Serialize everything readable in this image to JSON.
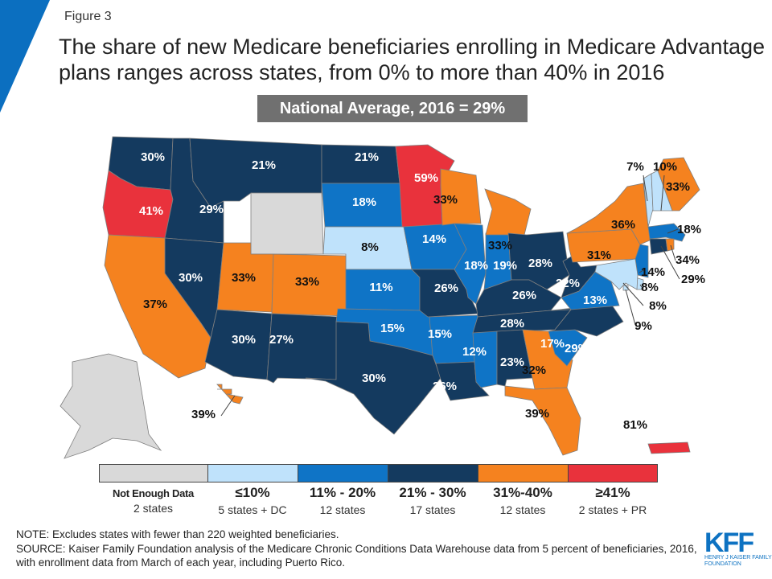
{
  "header": {
    "figure_label": "Figure 3",
    "title": "The share of new Medicare beneficiaries enrolling in Medicare Advantage plans ranges across states, from 0% to more than 40% in 2016",
    "national_average": "National Average, 2016 = 29%"
  },
  "colors": {
    "accent": "#0b6fc0",
    "nodata": "#d9d9d9",
    "le10": "#bfe2fb",
    "b11_20": "#0f74c6",
    "b21_30": "#143a5f",
    "b31_40": "#f5821f",
    "ge41": "#e9323c"
  },
  "legend": [
    {
      "bin": "nodata",
      "label": "Not Enough Data",
      "count": "2 states"
    },
    {
      "bin": "le10",
      "label": "≤10%",
      "count": "5 states + DC"
    },
    {
      "bin": "b11_20",
      "label": "11% - 20%",
      "count": "12 states"
    },
    {
      "bin": "b21_30",
      "label": "21% - 30%",
      "count": "17 states"
    },
    {
      "bin": "b31_40",
      "label": "31%-40%",
      "count": "12 states"
    },
    {
      "bin": "ge41",
      "label": "≥41%",
      "count": "2 states + PR"
    }
  ],
  "states": [
    {
      "code": "WA",
      "value": "30%",
      "bin": "b21_30"
    },
    {
      "code": "OR",
      "value": "41%",
      "bin": "ge41"
    },
    {
      "code": "ID",
      "value": "29%",
      "bin": "b21_30"
    },
    {
      "code": "MT",
      "value": "21%",
      "bin": "b21_30"
    },
    {
      "code": "WY",
      "value": "",
      "bin": "nodata"
    },
    {
      "code": "ND",
      "value": "21%",
      "bin": "b21_30"
    },
    {
      "code": "SD",
      "value": "18%",
      "bin": "b11_20"
    },
    {
      "code": "NE",
      "value": "8%",
      "bin": "le10"
    },
    {
      "code": "NV",
      "value": "30%",
      "bin": "b21_30"
    },
    {
      "code": "CA",
      "value": "37%",
      "bin": "b31_40"
    },
    {
      "code": "UT",
      "value": "33%",
      "bin": "b31_40"
    },
    {
      "code": "CO",
      "value": "33%",
      "bin": "b31_40"
    },
    {
      "code": "AZ",
      "value": "30%",
      "bin": "b21_30"
    },
    {
      "code": "NM",
      "value": "27%",
      "bin": "b21_30"
    },
    {
      "code": "KS",
      "value": "11%",
      "bin": "b11_20"
    },
    {
      "code": "OK",
      "value": "15%",
      "bin": "b11_20"
    },
    {
      "code": "TX",
      "value": "30%",
      "bin": "b21_30"
    },
    {
      "code": "MN",
      "value": "59%",
      "bin": "ge41"
    },
    {
      "code": "IA",
      "value": "14%",
      "bin": "b11_20"
    },
    {
      "code": "MO",
      "value": "26%",
      "bin": "b21_30"
    },
    {
      "code": "AR",
      "value": "15%",
      "bin": "b11_20"
    },
    {
      "code": "LA",
      "value": "26%",
      "bin": "b21_30"
    },
    {
      "code": "WI",
      "value": "33%",
      "bin": "b31_40"
    },
    {
      "code": "IL",
      "value": "18%",
      "bin": "b11_20"
    },
    {
      "code": "IN",
      "value": "19%",
      "bin": "b11_20"
    },
    {
      "code": "MI",
      "value": "33%",
      "bin": "b31_40"
    },
    {
      "code": "OH",
      "value": "28%",
      "bin": "b21_30"
    },
    {
      "code": "KY",
      "value": "26%",
      "bin": "b21_30"
    },
    {
      "code": "TN",
      "value": "28%",
      "bin": "b21_30"
    },
    {
      "code": "MS",
      "value": "12%",
      "bin": "b11_20"
    },
    {
      "code": "AL",
      "value": "23%",
      "bin": "b21_30"
    },
    {
      "code": "GA",
      "value": "32%",
      "bin": "b31_40"
    },
    {
      "code": "FL",
      "value": "39%",
      "bin": "b31_40"
    },
    {
      "code": "SC",
      "value": "17%",
      "bin": "b11_20"
    },
    {
      "code": "NC",
      "value": "29%",
      "bin": "b21_30"
    },
    {
      "code": "VA",
      "value": "13%",
      "bin": "b11_20"
    },
    {
      "code": "WV",
      "value": "22%",
      "bin": "b21_30"
    },
    {
      "code": "PA",
      "value": "31%",
      "bin": "b31_40"
    },
    {
      "code": "NY",
      "value": "36%",
      "bin": "b31_40"
    },
    {
      "code": "VT",
      "value": "7%",
      "bin": "le10"
    },
    {
      "code": "NH",
      "value": "10%",
      "bin": "le10"
    },
    {
      "code": "ME",
      "value": "33%",
      "bin": "b31_40"
    },
    {
      "code": "MA",
      "value": "18%",
      "bin": "b11_20"
    },
    {
      "code": "CT",
      "value": "29%",
      "bin": "b21_30"
    },
    {
      "code": "RI",
      "value": "34%",
      "bin": "b31_40"
    },
    {
      "code": "NJ",
      "value": "14%",
      "bin": "b11_20"
    },
    {
      "code": "DE",
      "value": "8%",
      "bin": "le10"
    },
    {
      "code": "MD",
      "value": "8%",
      "bin": "le10"
    },
    {
      "code": "DC",
      "value": "9%",
      "bin": "le10"
    },
    {
      "code": "AK",
      "value": "",
      "bin": "nodata"
    },
    {
      "code": "HI",
      "value": "39%",
      "bin": "b31_40"
    },
    {
      "code": "PR",
      "value": "81%",
      "bin": "ge41"
    }
  ],
  "notes": {
    "note": "NOTE: Excludes states with fewer than 220 weighted beneficiaries.",
    "source": "SOURCE: Kaiser Family Foundation analysis of the Medicare Chronic Conditions Data Warehouse data from 5 percent of beneficiaries, 2016, with enrollment data from March of each year, including Puerto Rico."
  },
  "logo": {
    "text": "KFF",
    "subtitle": "HENRY J KAISER FAMILY FOUNDATION"
  }
}
